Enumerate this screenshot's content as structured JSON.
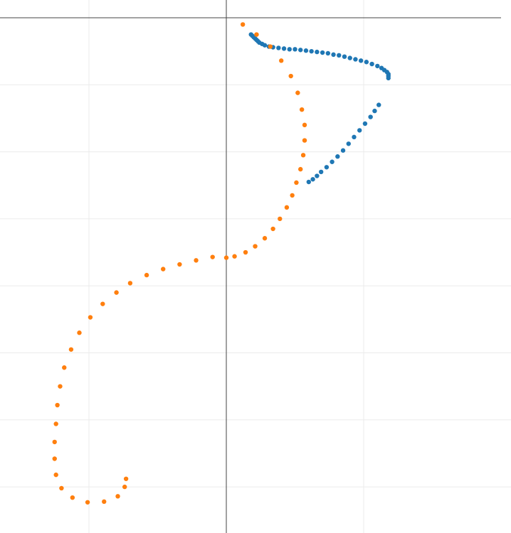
{
  "chart_data": {
    "type": "scatter",
    "x_gridlines": [
      -1,
      0,
      1
    ],
    "y_gridlines": [
      0,
      -1,
      -2,
      -3,
      -4,
      -5,
      -6,
      -7
    ],
    "axis_crossings": {
      "x": 0,
      "y": 0
    },
    "grid": true,
    "colors": {
      "series_1": "#1f77b4",
      "series_2": "#ff7f0e",
      "grid": "#ebebeb",
      "axis": "#444444"
    },
    "series": [
      {
        "color": "#1f77b4",
        "points": [
          [
            0.18,
            -0.25
          ],
          [
            0.19,
            -0.27
          ],
          [
            0.2,
            -0.29
          ],
          [
            0.21,
            -0.31
          ],
          [
            0.22,
            -0.33
          ],
          [
            0.23,
            -0.35
          ],
          [
            0.24,
            -0.37
          ],
          [
            0.26,
            -0.39
          ],
          [
            0.28,
            -0.41
          ],
          [
            0.31,
            -0.43
          ],
          [
            0.34,
            -0.44
          ],
          [
            0.38,
            -0.45
          ],
          [
            0.42,
            -0.46
          ],
          [
            0.46,
            -0.47
          ],
          [
            0.5,
            -0.47
          ],
          [
            0.54,
            -0.48
          ],
          [
            0.58,
            -0.49
          ],
          [
            0.62,
            -0.5
          ],
          [
            0.66,
            -0.51
          ],
          [
            0.7,
            -0.52
          ],
          [
            0.74,
            -0.53
          ],
          [
            0.78,
            -0.55
          ],
          [
            0.82,
            -0.56
          ],
          [
            0.86,
            -0.58
          ],
          [
            0.9,
            -0.6
          ],
          [
            0.94,
            -0.62
          ],
          [
            0.98,
            -0.64
          ],
          [
            1.02,
            -0.66
          ],
          [
            1.06,
            -0.69
          ],
          [
            1.1,
            -0.72
          ],
          [
            1.13,
            -0.75
          ],
          [
            1.15,
            -0.78
          ],
          [
            1.17,
            -0.81
          ],
          [
            1.18,
            -0.84
          ],
          [
            1.18,
            -0.87
          ],
          [
            1.18,
            -0.9
          ],
          [
            1.11,
            -1.3
          ],
          [
            1.08,
            -1.39
          ],
          [
            1.05,
            -1.48
          ],
          [
            1.01,
            -1.58
          ],
          [
            0.97,
            -1.68
          ],
          [
            0.93,
            -1.78
          ],
          [
            0.89,
            -1.88
          ],
          [
            0.85,
            -1.98
          ],
          [
            0.81,
            -2.07
          ],
          [
            0.77,
            -2.15
          ],
          [
            0.73,
            -2.23
          ],
          [
            0.69,
            -2.3
          ],
          [
            0.66,
            -2.36
          ],
          [
            0.63,
            -2.41
          ],
          [
            0.6,
            -2.45
          ]
        ]
      },
      {
        "color": "#ff7f0e",
        "points": [
          [
            0.12,
            -0.1
          ],
          [
            0.22,
            -0.25
          ],
          [
            0.32,
            -0.43
          ],
          [
            0.4,
            -0.64
          ],
          [
            0.47,
            -0.87
          ],
          [
            0.52,
            -1.12
          ],
          [
            0.55,
            -1.37
          ],
          [
            0.57,
            -1.6
          ],
          [
            0.57,
            -1.83
          ],
          [
            0.56,
            -2.05
          ],
          [
            0.54,
            -2.26
          ],
          [
            0.51,
            -2.46
          ],
          [
            0.48,
            -2.65
          ],
          [
            0.44,
            -2.83
          ],
          [
            0.39,
            -3.0
          ],
          [
            0.34,
            -3.15
          ],
          [
            0.28,
            -3.29
          ],
          [
            0.21,
            -3.41
          ],
          [
            0.14,
            -3.5
          ],
          [
            0.06,
            -3.56
          ],
          [
            0.0,
            -3.58
          ],
          [
            -0.1,
            -3.57
          ],
          [
            -0.22,
            -3.62
          ],
          [
            -0.34,
            -3.68
          ],
          [
            -0.46,
            -3.75
          ],
          [
            -0.58,
            -3.84
          ],
          [
            -0.7,
            -3.96
          ],
          [
            -0.8,
            -4.1
          ],
          [
            -0.9,
            -4.27
          ],
          [
            -0.99,
            -4.47
          ],
          [
            -1.07,
            -4.7
          ],
          [
            -1.13,
            -4.95
          ],
          [
            -1.18,
            -5.22
          ],
          [
            -1.21,
            -5.5
          ],
          [
            -1.23,
            -5.78
          ],
          [
            -1.24,
            -6.06
          ],
          [
            -1.25,
            -6.33
          ],
          [
            -1.25,
            -6.58
          ],
          [
            -1.24,
            -6.82
          ],
          [
            -1.2,
            -7.02
          ],
          [
            -1.12,
            -7.16
          ],
          [
            -1.01,
            -7.23
          ],
          [
            -0.89,
            -7.22
          ],
          [
            -0.79,
            -7.14
          ],
          [
            -0.74,
            -7.0
          ],
          [
            -0.73,
            -6.88
          ]
        ]
      }
    ]
  }
}
